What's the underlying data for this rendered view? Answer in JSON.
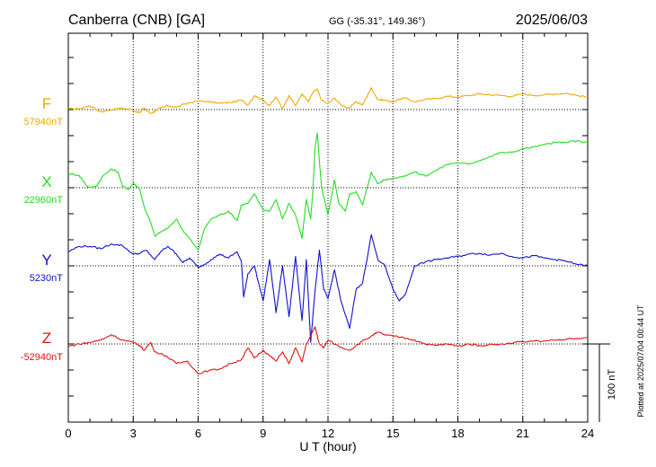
{
  "header": {
    "station": "Canberra (CNB)  [GA]",
    "coords": "GG (-35.31°, 149.36°)",
    "date": "2025/06/03"
  },
  "plotted_note": "Plotted at 2025/07/04 00:44 UT",
  "scale_bar_label": "100 nT",
  "colors": {
    "F": "#f0a800",
    "X": "#22dd22",
    "Y": "#1010d0",
    "Z": "#e01010",
    "frame": "#000000"
  },
  "chart_data": {
    "type": "line",
    "title": "Canberra (CNB)  [GA]",
    "xlabel": "U T (hour)",
    "ylabel": "",
    "xlim": [
      0,
      24
    ],
    "xticks": [
      0,
      3,
      6,
      9,
      12,
      15,
      18,
      21,
      24
    ],
    "grid": true,
    "scale_nT": 100,
    "series": [
      {
        "name": "F",
        "baseline_label": "57940nT",
        "x": [
          0,
          0.5,
          1,
          1.5,
          2,
          2.5,
          3,
          3.3,
          3.5,
          3.8,
          4,
          4.3,
          4.6,
          5,
          5.5,
          6,
          6.5,
          7,
          7.5,
          8,
          8.3,
          8.6,
          9,
          9.3,
          9.6,
          9.9,
          10.2,
          10.5,
          10.8,
          11.1,
          11.3,
          11.5,
          11.7,
          12,
          12.3,
          12.6,
          13,
          13.3,
          13.6,
          13.9,
          14,
          14.3,
          14.6,
          15,
          15.5,
          16,
          16.5,
          17,
          17.5,
          18,
          18.5,
          19,
          19.5,
          20,
          20.5,
          21,
          21.5,
          22,
          22.5,
          23,
          23.5,
          24
        ],
        "y": [
          57941,
          57941,
          57945,
          57937,
          57940,
          57942,
          57939,
          57936,
          57942,
          57935,
          57938,
          57942,
          57945,
          57943,
          57948,
          57951,
          57950,
          57948,
          57949,
          57952,
          57946,
          57958,
          57952,
          57945,
          57956,
          57941,
          57958,
          57945,
          57960,
          57950,
          57962,
          57966,
          57952,
          57947,
          57955,
          57946,
          57942,
          57950,
          57946,
          57962,
          57968,
          57953,
          57952,
          57950,
          57955,
          57950,
          57953,
          57954,
          57957,
          57956,
          57958,
          57960,
          57959,
          57958,
          57957,
          57960,
          57958,
          57959,
          57960,
          57961,
          57958,
          57956
        ]
      },
      {
        "name": "X",
        "baseline_label": "22960nT",
        "x": [
          0,
          0.5,
          0.8,
          1,
          1.3,
          1.6,
          2,
          2.3,
          2.5,
          2.8,
          3,
          3.3,
          3.5,
          3.8,
          4,
          4.3,
          4.6,
          5,
          5.3,
          5.6,
          6,
          6.3,
          6.6,
          7,
          7.4,
          7.8,
          8,
          8.3,
          8.6,
          9,
          9.3,
          9.6,
          9.9,
          10.2,
          10.5,
          10.8,
          11,
          11.2,
          11.3,
          11.4,
          11.5,
          11.7,
          12,
          12.3,
          12.5,
          12.8,
          13,
          13.3,
          13.6,
          14,
          14.3,
          14.6,
          15,
          15.5,
          16,
          16.5,
          17,
          17.5,
          18,
          18.5,
          19,
          19.5,
          20,
          20.5,
          21,
          21.5,
          22,
          22.5,
          23,
          23.5,
          24
        ],
        "y": [
          22978,
          22976,
          22964,
          22960,
          22962,
          22975,
          22984,
          22980,
          22962,
          22958,
          22966,
          22958,
          22936,
          22916,
          22898,
          22904,
          22908,
          22920,
          22905,
          22895,
          22880,
          22908,
          22920,
          22925,
          22930,
          22918,
          22938,
          22940,
          22952,
          22932,
          22930,
          22945,
          22920,
          22940,
          22925,
          22895,
          22945,
          22920,
          22955,
          23010,
          23030,
          22960,
          22925,
          22970,
          22940,
          22930,
          22952,
          22955,
          22938,
          22980,
          22965,
          22970,
          22972,
          22975,
          22980,
          22975,
          22982,
          22990,
          22992,
          22990,
          22995,
          23000,
          23005,
          23005,
          23010,
          23012,
          23015,
          23018,
          23018,
          23020,
          23018
        ]
      },
      {
        "name": "Y",
        "baseline_label": "5230nT",
        "x": [
          0,
          0.5,
          1,
          1.5,
          2,
          2.5,
          3,
          3.3,
          3.6,
          4,
          4.3,
          4.6,
          5,
          5.3,
          5.6,
          6,
          6.3,
          6.6,
          7,
          7.4,
          7.8,
          8,
          8.1,
          8.3,
          8.6,
          9,
          9.3,
          9.6,
          9.9,
          10.2,
          10.5,
          10.8,
          11,
          11.2,
          11.4,
          11.6,
          11.8,
          12,
          12.3,
          12.6,
          13,
          13.3,
          13.6,
          14,
          14.3,
          14.6,
          15,
          15.3,
          15.6,
          16,
          16.5,
          17,
          17.5,
          18,
          18.5,
          19,
          19.5,
          20,
          20.5,
          21,
          21.5,
          22,
          22.5,
          23,
          23.5,
          24
        ],
        "y": [
          5248,
          5255,
          5255,
          5252,
          5258,
          5256,
          5245,
          5246,
          5250,
          5238,
          5249,
          5255,
          5245,
          5234,
          5240,
          5228,
          5232,
          5238,
          5245,
          5240,
          5248,
          5235,
          5190,
          5220,
          5230,
          5185,
          5238,
          5170,
          5230,
          5165,
          5242,
          5160,
          5238,
          5132,
          5198,
          5250,
          5200,
          5188,
          5225,
          5185,
          5150,
          5200,
          5208,
          5270,
          5238,
          5232,
          5200,
          5185,
          5195,
          5230,
          5235,
          5238,
          5240,
          5242,
          5245,
          5246,
          5244,
          5246,
          5242,
          5240,
          5243,
          5240,
          5238,
          5236,
          5232,
          5230
        ]
      },
      {
        "name": "Z",
        "baseline_label": "-52940nT",
        "x": [
          0,
          0.5,
          1,
          1.5,
          2,
          2.5,
          3,
          3.3,
          3.5,
          3.8,
          4,
          4.5,
          5,
          5.5,
          6,
          6.5,
          7,
          7.5,
          8,
          8.3,
          8.6,
          9,
          9.3,
          9.6,
          9.9,
          10.2,
          10.5,
          10.8,
          11,
          11.2,
          11.4,
          11.6,
          11.8,
          12,
          12.5,
          13,
          13.5,
          14,
          14.3,
          14.6,
          15,
          15.5,
          16,
          16.5,
          17,
          17.5,
          18,
          18.5,
          19,
          20,
          21,
          22,
          23,
          24
        ],
        "y": [
          -52943,
          -52940,
          -52938,
          -52935,
          -52928,
          -52935,
          -52938,
          -52942,
          -52948,
          -52938,
          -52950,
          -52955,
          -52965,
          -52962,
          -52978,
          -52974,
          -52972,
          -52965,
          -52960,
          -52945,
          -52958,
          -52948,
          -52955,
          -52962,
          -52950,
          -52965,
          -52945,
          -52963,
          -52940,
          -52930,
          -52918,
          -52940,
          -52945,
          -52935,
          -52943,
          -52948,
          -52938,
          -52930,
          -52925,
          -52928,
          -52930,
          -52932,
          -52935,
          -52940,
          -52942,
          -52940,
          -52943,
          -52940,
          -52942,
          -52940,
          -52937,
          -52936,
          -52934,
          -52932
        ]
      }
    ]
  }
}
